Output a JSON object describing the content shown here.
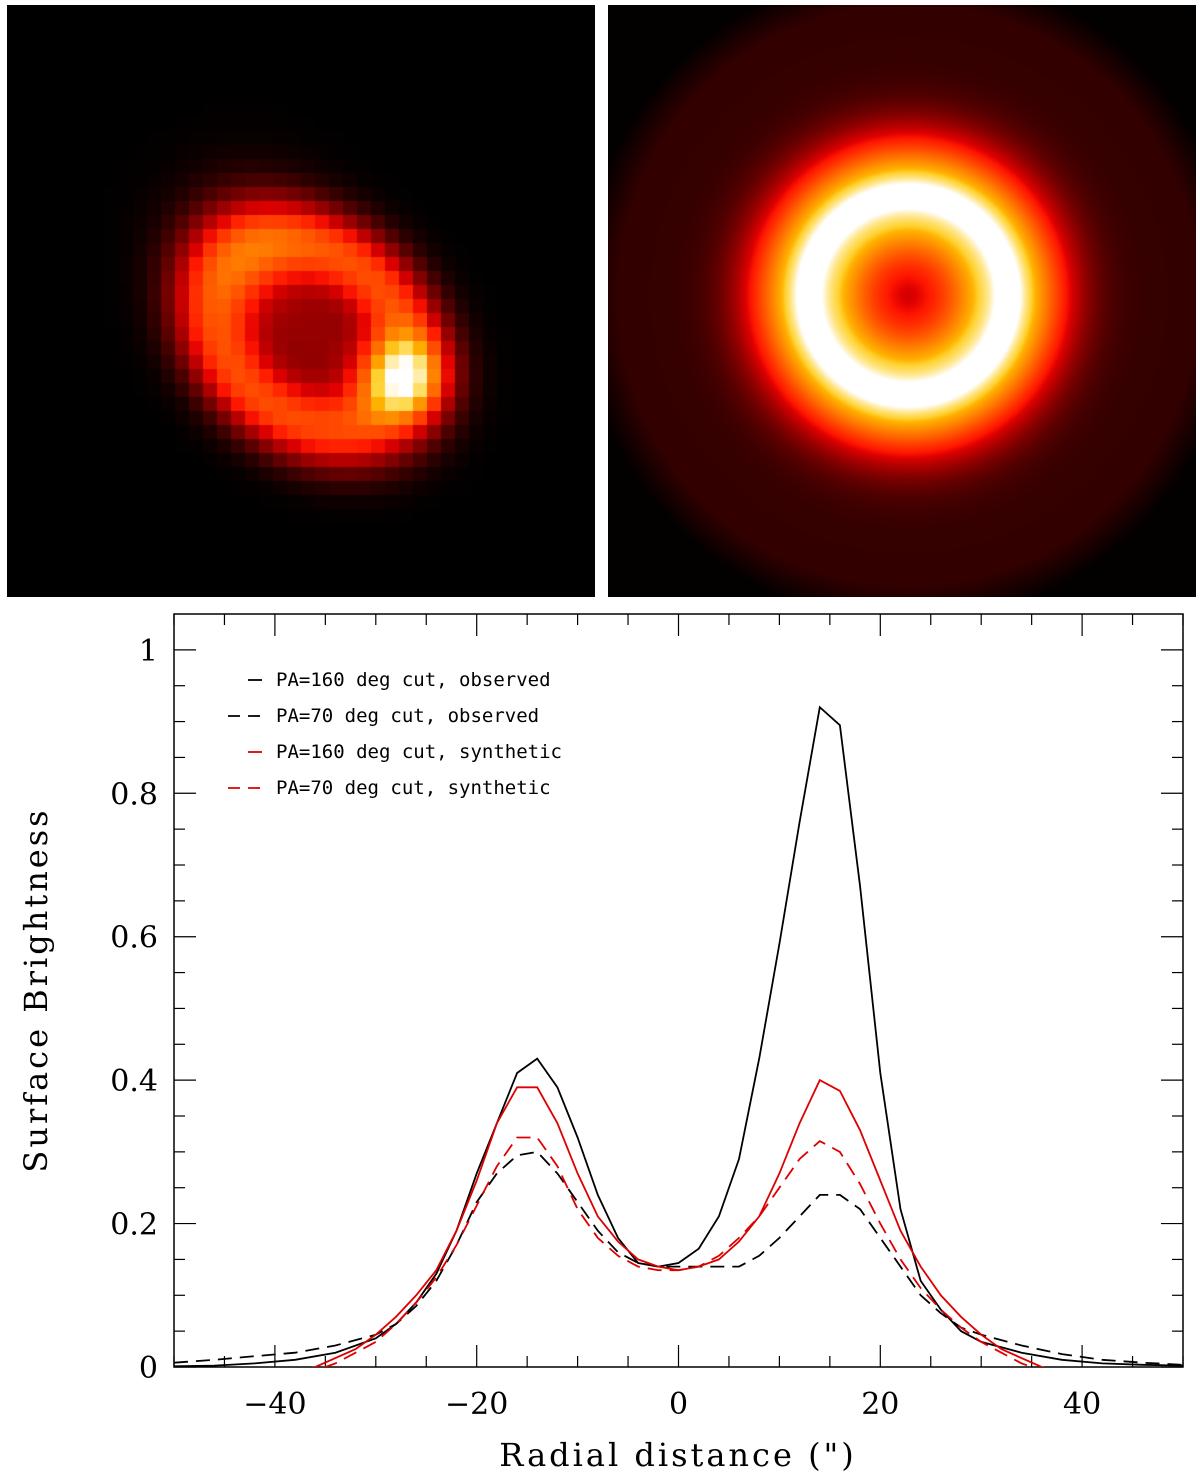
{
  "images": [
    {
      "label": "",
      "colormap": "hot"
    },
    {
      "label": "",
      "colormap": "hot"
    }
  ],
  "chart_data": {
    "type": "line",
    "title": "",
    "xlabel": "Radial distance (\")",
    "ylabel": "Surface Brightness",
    "xlim": [
      -50,
      50
    ],
    "ylim": [
      0,
      1.05
    ],
    "xticks": [
      -40,
      -20,
      0,
      20,
      40
    ],
    "yticks": [
      0,
      0.2,
      0.4,
      0.6,
      0.8,
      1
    ],
    "ytick_labels": [
      "0",
      "0.2",
      "0.4",
      "0.6",
      "0.8",
      "1"
    ],
    "legend_position": "top-left",
    "series": [
      {
        "name": "PA=160 deg cut, observed",
        "color": "#000000",
        "dash": "solid",
        "x": [
          -50,
          -46,
          -42,
          -38,
          -34,
          -30,
          -28,
          -26,
          -24,
          -22,
          -20,
          -18,
          -16,
          -14,
          -12,
          -10,
          -8,
          -6,
          -4,
          -2,
          0,
          2,
          4,
          6,
          8,
          10,
          12,
          14,
          16,
          18,
          20,
          22,
          24,
          26,
          28,
          30,
          34,
          38,
          42,
          46,
          50
        ],
        "y": [
          0.001,
          0.002,
          0.005,
          0.01,
          0.02,
          0.04,
          0.06,
          0.09,
          0.13,
          0.19,
          0.27,
          0.34,
          0.41,
          0.43,
          0.39,
          0.32,
          0.24,
          0.18,
          0.145,
          0.14,
          0.145,
          0.165,
          0.21,
          0.29,
          0.43,
          0.59,
          0.76,
          0.92,
          0.895,
          0.67,
          0.41,
          0.22,
          0.12,
          0.08,
          0.05,
          0.035,
          0.02,
          0.01,
          0.005,
          0.003,
          0.002
        ]
      },
      {
        "name": "PA=70 deg cut, observed",
        "color": "#000000",
        "dash": "dashed",
        "x": [
          -50,
          -46,
          -42,
          -38,
          -34,
          -30,
          -28,
          -26,
          -24,
          -22,
          -20,
          -18,
          -16,
          -14,
          -12,
          -10,
          -8,
          -6,
          -4,
          -2,
          0,
          2,
          4,
          6,
          8,
          10,
          12,
          14,
          16,
          18,
          20,
          22,
          24,
          26,
          28,
          30,
          34,
          38,
          42,
          46,
          50
        ],
        "y": [
          0.006,
          0.01,
          0.015,
          0.02,
          0.03,
          0.045,
          0.06,
          0.085,
          0.12,
          0.17,
          0.23,
          0.27,
          0.295,
          0.3,
          0.27,
          0.23,
          0.19,
          0.16,
          0.145,
          0.14,
          0.14,
          0.14,
          0.14,
          0.14,
          0.155,
          0.18,
          0.21,
          0.24,
          0.24,
          0.22,
          0.18,
          0.14,
          0.1,
          0.075,
          0.055,
          0.045,
          0.03,
          0.018,
          0.01,
          0.006,
          0.003
        ]
      },
      {
        "name": "PA=160 deg cut, synthetic",
        "color": "#dd0000",
        "dash": "solid",
        "x": [
          -50,
          -40,
          -36,
          -32,
          -30,
          -28,
          -26,
          -24,
          -22,
          -20,
          -18,
          -16,
          -14,
          -12,
          -10,
          -8,
          -6,
          -4,
          -2,
          0,
          2,
          4,
          6,
          8,
          10,
          12,
          14,
          16,
          18,
          20,
          22,
          24,
          26,
          28,
          30,
          32,
          36,
          40,
          50
        ],
        "y": [
          -0.05,
          -0.015,
          0.0,
          0.025,
          0.045,
          0.07,
          0.1,
          0.135,
          0.19,
          0.26,
          0.34,
          0.39,
          0.39,
          0.34,
          0.27,
          0.21,
          0.175,
          0.15,
          0.14,
          0.135,
          0.14,
          0.15,
          0.175,
          0.21,
          0.27,
          0.34,
          0.4,
          0.385,
          0.33,
          0.26,
          0.19,
          0.14,
          0.1,
          0.07,
          0.045,
          0.025,
          0.0,
          -0.015,
          -0.05
        ]
      },
      {
        "name": "PA=70 deg cut, synthetic",
        "color": "#dd0000",
        "dash": "dashed",
        "x": [
          -50,
          -40,
          -36,
          -34,
          -32,
          -30,
          -28,
          -26,
          -24,
          -22,
          -20,
          -18,
          -16,
          -14,
          -12,
          -10,
          -8,
          -6,
          -4,
          -2,
          0,
          2,
          4,
          6,
          8,
          10,
          12,
          14,
          16,
          18,
          20,
          22,
          24,
          26,
          28,
          30,
          32,
          34,
          36,
          40,
          50
        ],
        "y": [
          -0.05,
          -0.02,
          -0.005,
          0.005,
          0.02,
          0.035,
          0.06,
          0.09,
          0.125,
          0.17,
          0.225,
          0.28,
          0.32,
          0.32,
          0.28,
          0.22,
          0.18,
          0.155,
          0.14,
          0.135,
          0.135,
          0.14,
          0.155,
          0.18,
          0.21,
          0.25,
          0.29,
          0.315,
          0.3,
          0.255,
          0.2,
          0.15,
          0.11,
          0.08,
          0.055,
          0.035,
          0.02,
          0.005,
          -0.005,
          -0.02,
          -0.05
        ]
      }
    ]
  }
}
